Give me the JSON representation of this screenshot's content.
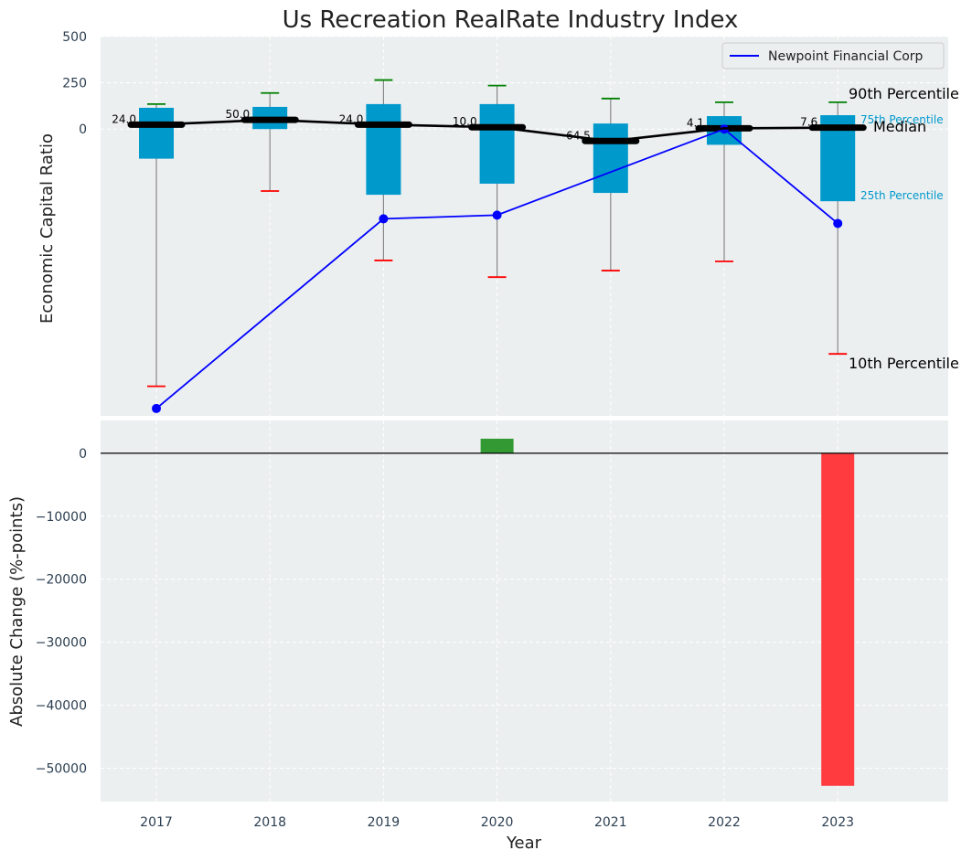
{
  "chart_data": [
    {
      "type": "box",
      "title": "Us Recreation RealRate Industry Index",
      "ylabel": "Economic Capital Ratio",
      "xlabel": "",
      "ylim": [
        -1550,
        500
      ],
      "yticks": [
        0,
        250,
        500
      ],
      "ytick_labels": [
        "0",
        "250",
        "500"
      ],
      "categories": [
        "2017",
        "2018",
        "2019",
        "2020",
        "2021",
        "2022",
        "2023"
      ],
      "p10": [
        -1390,
        -335,
        -710,
        -800,
        -765,
        -715,
        -1215
      ],
      "p25": [
        -160,
        0,
        -355,
        -295,
        -345,
        -85,
        -390
      ],
      "median": [
        24.0,
        50.0,
        24.0,
        10.0,
        -64.5,
        4.1,
        7.6
      ],
      "median_labels": [
        "24.0",
        "50.0",
        "24.0",
        "10.0",
        "-64.5",
        "4.1",
        "7.6"
      ],
      "p75": [
        115,
        120,
        135,
        135,
        30,
        70,
        75
      ],
      "p90": [
        135,
        195,
        265,
        235,
        165,
        145,
        145
      ],
      "series": [
        {
          "name": "Newpoint Financial Corp",
          "color": "#0000ff",
          "values": [
            -1510,
            null,
            -485,
            -465,
            null,
            0,
            -510
          ]
        }
      ],
      "annotations": {
        "p90": "90th Percentile",
        "p75": "75th Percentile",
        "median": "Median",
        "p25": "25th Percentile",
        "p10": "10th Percentile"
      },
      "legend_position": "top-right",
      "grid": true
    },
    {
      "type": "bar",
      "xlabel": "Year",
      "ylabel": "Absolute Change (%-points)",
      "categories": [
        "2017",
        "2018",
        "2019",
        "2020",
        "2021",
        "2022",
        "2023"
      ],
      "values": [
        0,
        0,
        0,
        2300,
        0,
        0,
        -52800
      ],
      "ylim": [
        -55300,
        5200
      ],
      "yticks": [
        0,
        -10000,
        -20000,
        -30000,
        -40000,
        -50000
      ],
      "ytick_labels": [
        "0",
        "−10000",
        "−20000",
        "−30000",
        "−40000",
        "−50000"
      ],
      "positive_color": "#339933",
      "negative_color": "#ff3b3f",
      "grid": true
    }
  ],
  "colors": {
    "box": "#0099cc",
    "whisker": "#888888",
    "cap_high": "#008000",
    "cap_low": "#ff0000",
    "median_line": "#000000",
    "panel_bg": "#ebeff0",
    "grid": "#ffffff"
  }
}
